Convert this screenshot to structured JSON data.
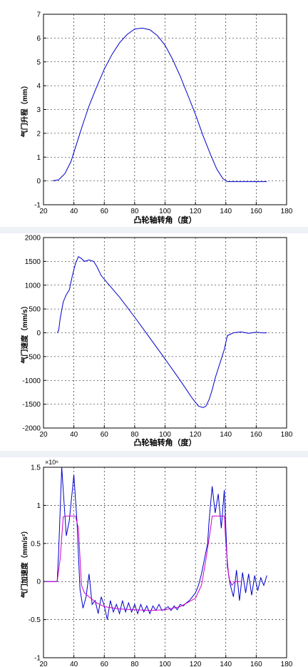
{
  "chart_data": [
    {
      "type": "line",
      "title": "",
      "xlabel": "凸轮轴转角（度）",
      "ylabel": "气门升程（mm）",
      "xlim": [
        20,
        180
      ],
      "ylim": [
        -1,
        7
      ],
      "grid": true,
      "xticks": [
        "20",
        "40",
        "60",
        "80",
        "100",
        "120",
        "140",
        "160",
        "180"
      ],
      "yticks": [
        "-1",
        "0",
        "1",
        "2",
        "3",
        "4",
        "5",
        "6",
        "7"
      ],
      "series": [
        {
          "color": "#0000cc",
          "x": [
            26,
            30,
            34,
            38,
            42,
            46,
            50,
            55,
            60,
            65,
            70,
            75,
            80,
            85,
            90,
            95,
            100,
            105,
            110,
            115,
            120,
            125,
            130,
            134,
            138,
            141,
            145,
            150,
            155,
            160,
            167
          ],
          "y": [
            0,
            0.05,
            0.3,
            0.8,
            1.6,
            2.4,
            3.15,
            3.95,
            4.7,
            5.3,
            5.8,
            6.15,
            6.38,
            6.42,
            6.35,
            6.1,
            5.7,
            5.1,
            4.4,
            3.6,
            2.8,
            1.9,
            1.1,
            0.5,
            0.1,
            -0.03,
            -0.03,
            -0.03,
            -0.03,
            -0.03,
            -0.03
          ]
        }
      ]
    },
    {
      "type": "line",
      "title": "",
      "xlabel": "凸轮轴转角（度）",
      "ylabel": "气门速度（mm/s）",
      "xlim": [
        20,
        180
      ],
      "ylim": [
        -2000,
        2000
      ],
      "grid": true,
      "xticks": [
        "20",
        "40",
        "60",
        "80",
        "100",
        "120",
        "140",
        "160",
        "180"
      ],
      "yticks": [
        "-2000",
        "-1500",
        "-1000",
        "-500",
        "0",
        "500",
        "1000",
        "1500",
        "2000"
      ],
      "series": [
        {
          "color": "#0000cc",
          "x": [
            29,
            30,
            31,
            33,
            35,
            37,
            39,
            41,
            43,
            45,
            47,
            50,
            53,
            55,
            58,
            62,
            66,
            70,
            80,
            90,
            100,
            110,
            118,
            122,
            125,
            127,
            129,
            131,
            133,
            135,
            137,
            139,
            141,
            145,
            150,
            155,
            160,
            165,
            167
          ],
          "y": [
            0,
            50,
            300,
            650,
            800,
            900,
            1200,
            1450,
            1600,
            1560,
            1500,
            1530,
            1500,
            1400,
            1200,
            1050,
            900,
            750,
            330,
            -110,
            -550,
            -1000,
            -1380,
            -1540,
            -1570,
            -1540,
            -1400,
            -1200,
            -950,
            -750,
            -550,
            -350,
            -60,
            0,
            20,
            -10,
            10,
            -5,
            0
          ]
        }
      ]
    },
    {
      "type": "line",
      "title": "",
      "xlabel": "凸轮轴转角（度）",
      "ylabel": "气门加速度（mm/s²）",
      "scale_exponent": "×10⁶",
      "xlim": [
        20,
        180
      ],
      "ylim": [
        -1,
        1.5
      ],
      "grid": true,
      "xticks": [
        "20",
        "40",
        "60",
        "80",
        "100",
        "120",
        "140",
        "160",
        "180"
      ],
      "yticks": [
        "-1",
        "-0.5",
        "0",
        "0.5",
        "1",
        "1.5"
      ],
      "series": [
        {
          "color": "#0000cc",
          "x": [
            21,
            29,
            30,
            32,
            34,
            35,
            37,
            39,
            40,
            42,
            44,
            46,
            48,
            50,
            52,
            54,
            56,
            58,
            60,
            62,
            64,
            66,
            68,
            70,
            72,
            74,
            76,
            78,
            80,
            82,
            84,
            86,
            88,
            90,
            92,
            94,
            96,
            98,
            100,
            102,
            104,
            106,
            108,
            110,
            112,
            114,
            116,
            118,
            120,
            122,
            124,
            126,
            128,
            129,
            131,
            133,
            135,
            137,
            139,
            141,
            143,
            145,
            147,
            149,
            151,
            153,
            155,
            157,
            159,
            161,
            163,
            165,
            167
          ],
          "y": [
            0,
            0,
            0.4,
            1.5,
            0.9,
            0.6,
            0.8,
            1.2,
            1.4,
            0.8,
            -0.1,
            -0.35,
            -0.2,
            0.1,
            -0.3,
            -0.25,
            -0.42,
            -0.2,
            -0.32,
            -0.5,
            -0.25,
            -0.4,
            -0.3,
            -0.42,
            -0.25,
            -0.4,
            -0.28,
            -0.4,
            -0.3,
            -0.42,
            -0.3,
            -0.4,
            -0.32,
            -0.42,
            -0.32,
            -0.38,
            -0.3,
            -0.38,
            -0.36,
            -0.33,
            -0.38,
            -0.32,
            -0.37,
            -0.3,
            -0.32,
            -0.28,
            -0.25,
            -0.2,
            -0.15,
            -0.05,
            0.1,
            0.3,
            0.5,
            0.8,
            1.25,
            0.9,
            1.15,
            0.7,
            1.2,
            0.2,
            -0.05,
            -0.2,
            0.15,
            -0.25,
            0.12,
            -0.15,
            0.1,
            -0.18,
            0.08,
            -0.12,
            0.05,
            -0.05,
            0.08
          ]
        },
        {
          "color": "#cc00cc",
          "x": [
            21,
            29,
            31,
            33,
            35,
            37,
            39,
            41,
            43,
            45,
            47,
            50,
            55,
            60,
            70,
            80,
            90,
            100,
            110,
            120,
            124,
            127,
            130,
            131,
            133,
            136,
            139,
            140,
            142,
            144,
            146,
            150
          ],
          "y": [
            0,
            0,
            0.3,
            0.85,
            0.86,
            0.86,
            0.86,
            0.86,
            0.7,
            -0.05,
            -0.15,
            -0.2,
            -0.28,
            -0.33,
            -0.36,
            -0.37,
            -0.38,
            -0.37,
            -0.33,
            -0.22,
            -0.05,
            0.3,
            0.7,
            0.86,
            0.86,
            0.86,
            0.86,
            0.5,
            0.05,
            -0.05,
            0,
            0
          ]
        }
      ]
    }
  ]
}
